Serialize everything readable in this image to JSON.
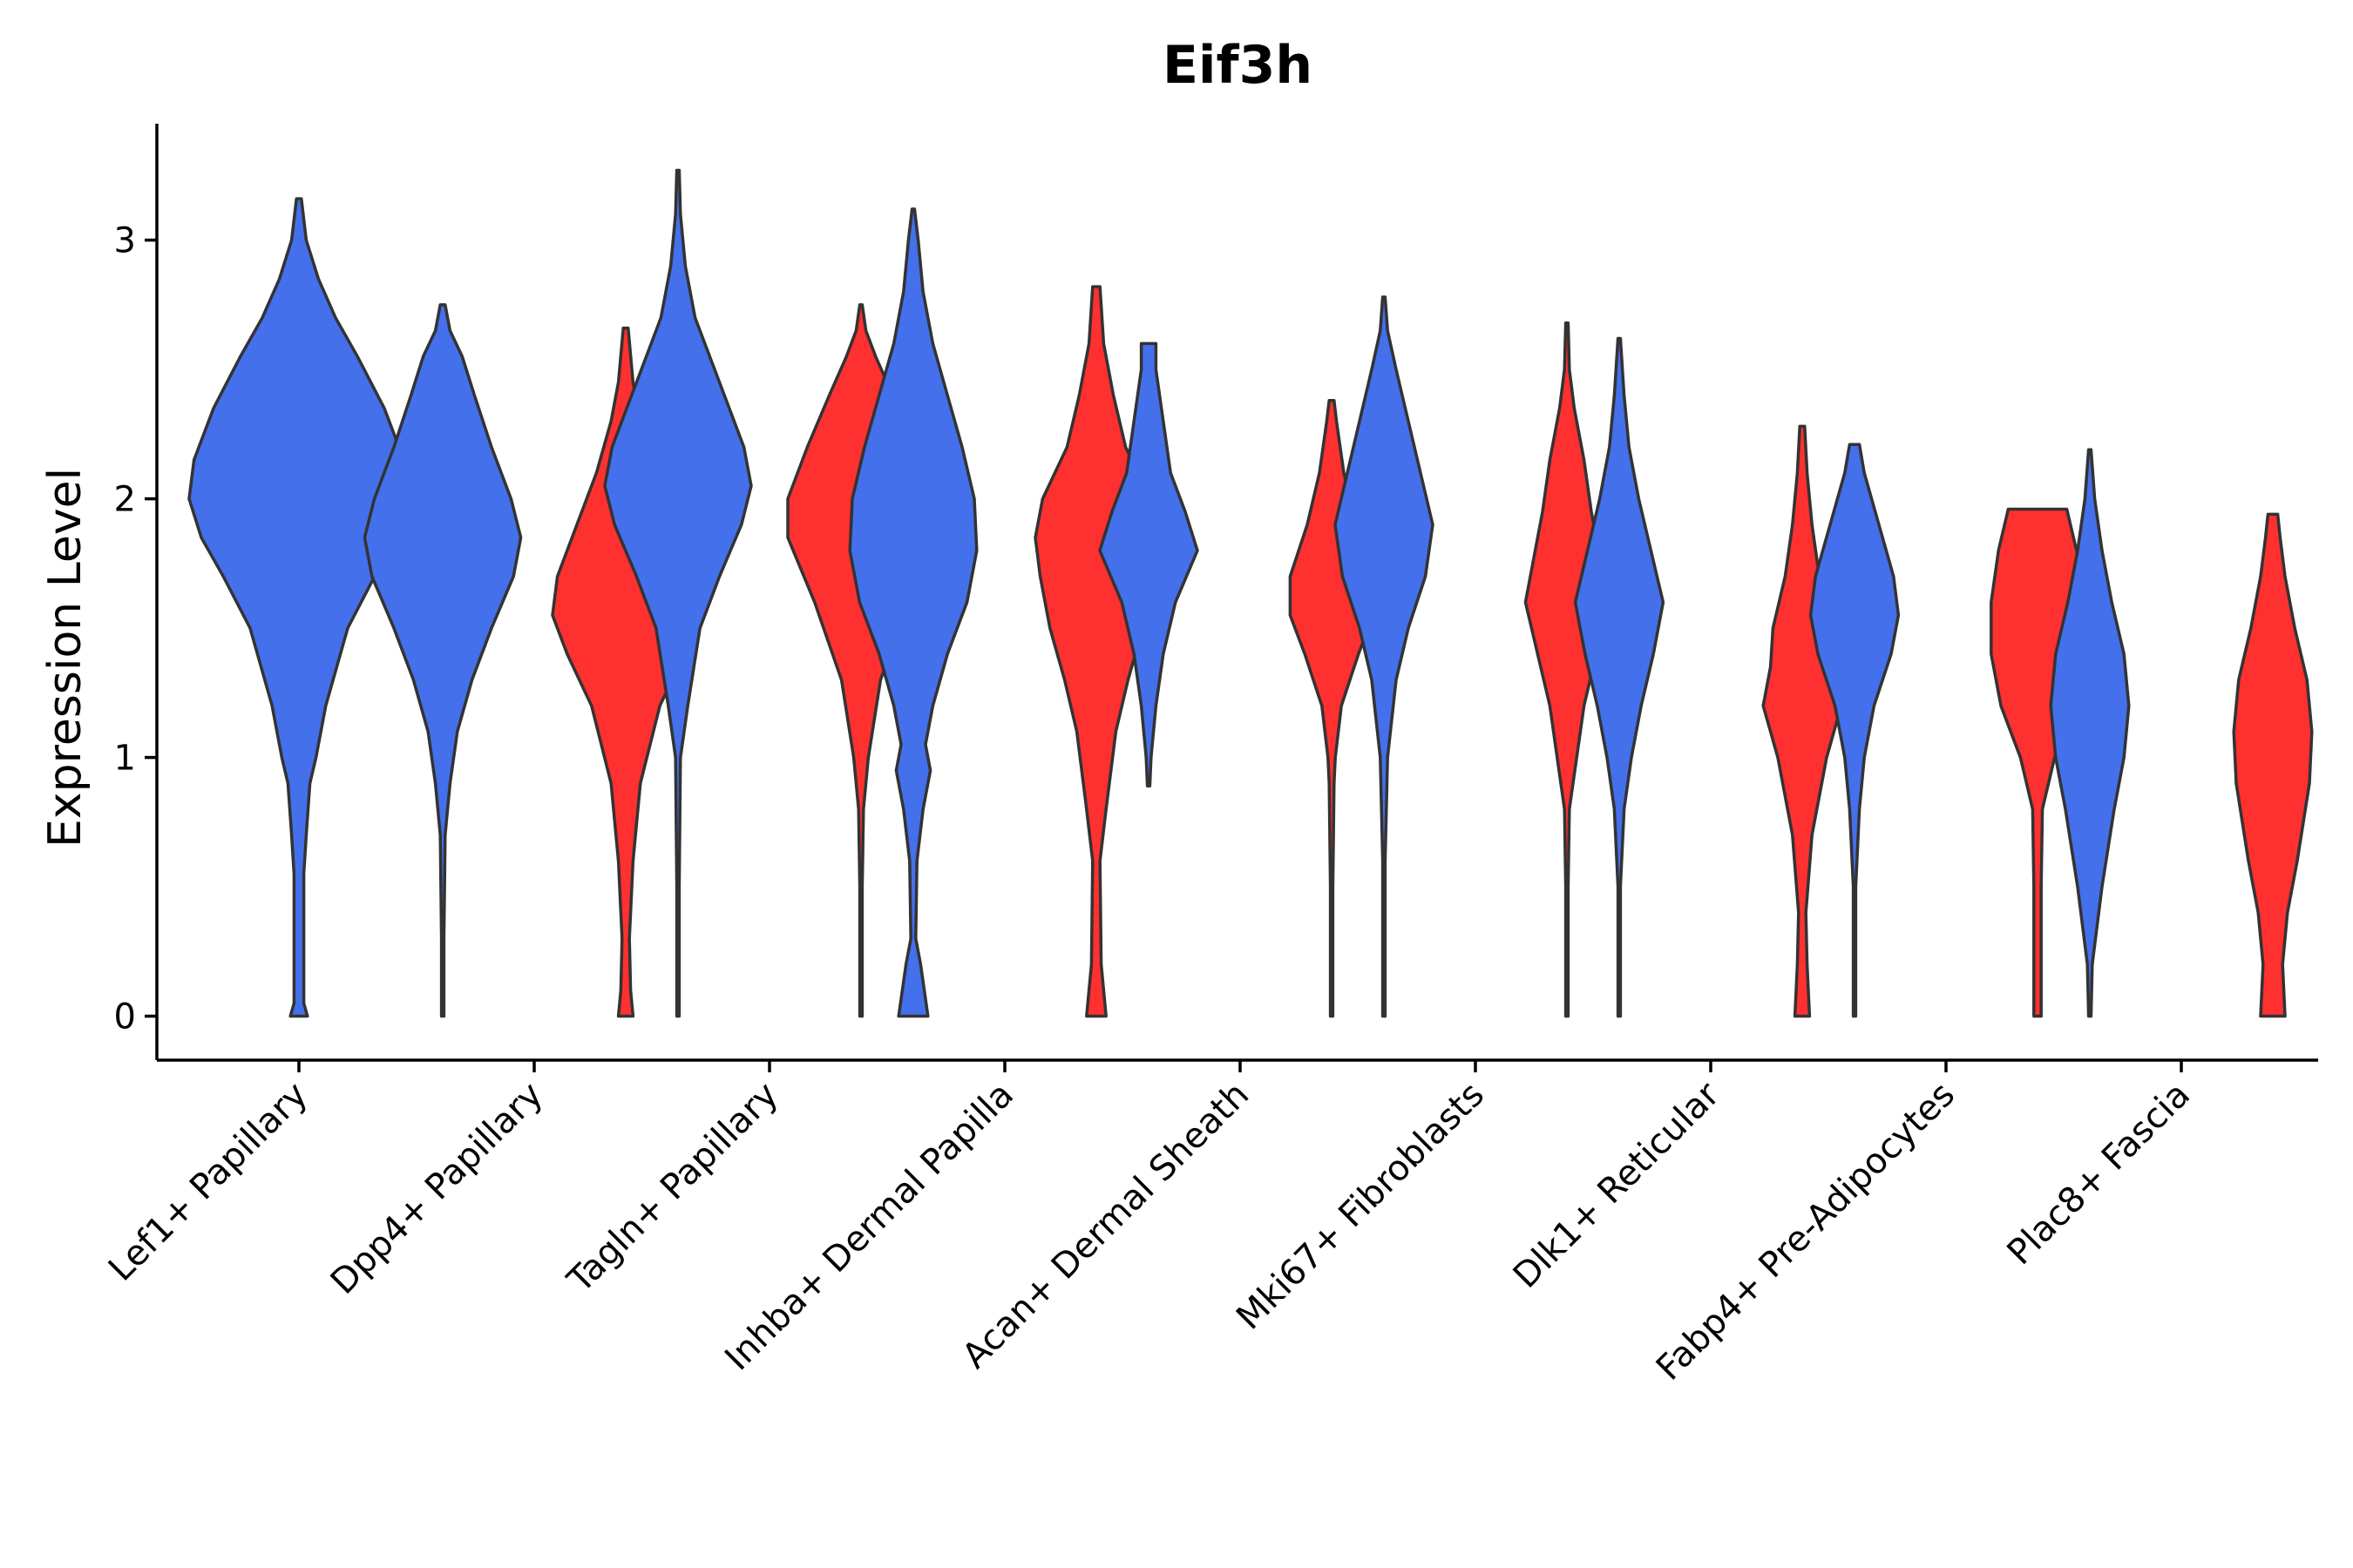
{
  "chart_data": {
    "type": "violin",
    "title": "Eif3h",
    "xlabel": "",
    "ylabel": "Expression Level",
    "ylim": [
      -0.17,
      3.45
    ],
    "yticks": [
      0,
      1,
      2,
      3
    ],
    "categories": [
      "Lef1+ Papillary",
      "Dpp4+ Papillary",
      "Tagln+ Papillary",
      "Inhba+ Dermal Papilla",
      "Acan+ Dermal Sheath",
      "Mki67+ Fibroblasts",
      "Dlk1+ Reticular",
      "Fabp4+ Pre-Adipocytes",
      "Plac8+ Fascia"
    ],
    "colors": {
      "group_a": "#4470EC",
      "group_b": "#FF3030"
    },
    "violins": [
      {
        "category": "Lef1+ Papillary",
        "group": "group_a",
        "min": 0,
        "max": 3.16,
        "profile": [
          [
            0,
            0.035
          ],
          [
            0.05,
            0.02
          ],
          [
            0.3,
            0.02
          ],
          [
            0.55,
            0.02
          ],
          [
            0.7,
            0.03
          ],
          [
            0.9,
            0.045
          ],
          [
            1.0,
            0.07
          ],
          [
            1.2,
            0.11
          ],
          [
            1.5,
            0.2
          ],
          [
            1.7,
            0.31
          ],
          [
            1.85,
            0.4
          ],
          [
            2.0,
            0.45
          ],
          [
            2.15,
            0.43
          ],
          [
            2.35,
            0.35
          ],
          [
            2.55,
            0.24
          ],
          [
            2.7,
            0.15
          ],
          [
            2.85,
            0.08
          ],
          [
            3.0,
            0.03
          ],
          [
            3.16,
            0.01
          ]
        ]
      },
      {
        "category": "Dpp4+ Papillary",
        "group": "group_a",
        "min": 0,
        "max": 2.75,
        "profile": [
          [
            0,
            0.005
          ],
          [
            0.3,
            0.005
          ],
          [
            0.7,
            0.01
          ],
          [
            0.9,
            0.03
          ],
          [
            1.1,
            0.06
          ],
          [
            1.3,
            0.12
          ],
          [
            1.5,
            0.2
          ],
          [
            1.7,
            0.29
          ],
          [
            1.85,
            0.32
          ],
          [
            2.0,
            0.28
          ],
          [
            2.2,
            0.2
          ],
          [
            2.4,
            0.13
          ],
          [
            2.55,
            0.08
          ],
          [
            2.65,
            0.03
          ],
          [
            2.75,
            0.01
          ]
        ]
      },
      {
        "category": "Dpp4+ Papillary",
        "group": "group_b",
        "min": 0,
        "max": 2.66,
        "profile": [
          [
            0,
            0.03
          ],
          [
            0.1,
            0.02
          ],
          [
            0.3,
            0.015
          ],
          [
            0.6,
            0.03
          ],
          [
            0.9,
            0.06
          ],
          [
            1.2,
            0.14
          ],
          [
            1.4,
            0.24
          ],
          [
            1.55,
            0.3
          ],
          [
            1.7,
            0.28
          ],
          [
            1.9,
            0.2
          ],
          [
            2.1,
            0.12
          ],
          [
            2.3,
            0.06
          ],
          [
            2.45,
            0.03
          ],
          [
            2.66,
            0.01
          ]
        ]
      },
      {
        "category": "Tagln+ Papillary",
        "group": "group_a",
        "min": 0,
        "max": 3.27,
        "profile": [
          [
            0,
            0.005
          ],
          [
            0.5,
            0.005
          ],
          [
            1.0,
            0.01
          ],
          [
            1.2,
            0.04
          ],
          [
            1.5,
            0.09
          ],
          [
            1.7,
            0.17
          ],
          [
            1.9,
            0.26
          ],
          [
            2.05,
            0.3
          ],
          [
            2.2,
            0.27
          ],
          [
            2.4,
            0.19
          ],
          [
            2.55,
            0.13
          ],
          [
            2.7,
            0.07
          ],
          [
            2.9,
            0.03
          ],
          [
            3.1,
            0.01
          ],
          [
            3.27,
            0.005
          ]
        ]
      },
      {
        "category": "Tagln+ Papillary",
        "group": "group_b",
        "min": 0,
        "max": 2.75,
        "profile": [
          [
            0,
            0.005
          ],
          [
            0.5,
            0.005
          ],
          [
            0.8,
            0.01
          ],
          [
            1.0,
            0.03
          ],
          [
            1.3,
            0.08
          ],
          [
            1.6,
            0.19
          ],
          [
            1.85,
            0.3
          ],
          [
            2.0,
            0.3
          ],
          [
            2.2,
            0.22
          ],
          [
            2.4,
            0.13
          ],
          [
            2.55,
            0.06
          ],
          [
            2.65,
            0.02
          ],
          [
            2.75,
            0.005
          ]
        ]
      },
      {
        "category": "Inhba+ Dermal Papilla",
        "group": "group_a",
        "min": 0,
        "max": 3.12,
        "profile": [
          [
            0,
            0.06
          ],
          [
            0.2,
            0.03
          ],
          [
            0.3,
            0.01
          ],
          [
            0.6,
            0.015
          ],
          [
            0.8,
            0.04
          ],
          [
            0.95,
            0.07
          ],
          [
            1.05,
            0.05
          ],
          [
            1.2,
            0.08
          ],
          [
            1.4,
            0.14
          ],
          [
            1.6,
            0.22
          ],
          [
            1.8,
            0.26
          ],
          [
            2.0,
            0.25
          ],
          [
            2.2,
            0.2
          ],
          [
            2.4,
            0.14
          ],
          [
            2.6,
            0.08
          ],
          [
            2.8,
            0.04
          ],
          [
            3.0,
            0.02
          ],
          [
            3.12,
            0.005
          ]
        ]
      },
      {
        "category": "Inhba+ Dermal Papilla",
        "group": "group_b",
        "min": 0,
        "max": 2.82,
        "profile": [
          [
            0,
            0.04
          ],
          [
            0.2,
            0.02
          ],
          [
            0.6,
            0.015
          ],
          [
            0.8,
            0.04
          ],
          [
            1.1,
            0.08
          ],
          [
            1.3,
            0.13
          ],
          [
            1.5,
            0.19
          ],
          [
            1.7,
            0.23
          ],
          [
            1.85,
            0.25
          ],
          [
            2.0,
            0.22
          ],
          [
            2.2,
            0.12
          ],
          [
            2.4,
            0.07
          ],
          [
            2.6,
            0.03
          ],
          [
            2.82,
            0.015
          ]
        ]
      },
      {
        "category": "Acan+ Dermal Sheath",
        "group": "group_a",
        "min": 0.89,
        "max": 2.6,
        "profile": [
          [
            0.89,
            0.005
          ],
          [
            1.0,
            0.01
          ],
          [
            1.2,
            0.03
          ],
          [
            1.4,
            0.06
          ],
          [
            1.6,
            0.11
          ],
          [
            1.8,
            0.2
          ],
          [
            1.95,
            0.15
          ],
          [
            2.1,
            0.09
          ],
          [
            2.3,
            0.06
          ],
          [
            2.5,
            0.03
          ],
          [
            2.6,
            0.03
          ]
        ]
      },
      {
        "category": "Acan+ Dermal Sheath",
        "group": "group_b",
        "min": 0,
        "max": 2.38,
        "profile": [
          [
            0,
            0.005
          ],
          [
            0.5,
            0.005
          ],
          [
            0.9,
            0.01
          ],
          [
            1.0,
            0.015
          ],
          [
            1.2,
            0.04
          ],
          [
            1.4,
            0.11
          ],
          [
            1.55,
            0.17
          ],
          [
            1.7,
            0.17
          ],
          [
            1.9,
            0.1
          ],
          [
            2.1,
            0.05
          ],
          [
            2.3,
            0.02
          ],
          [
            2.38,
            0.01
          ]
        ]
      },
      {
        "category": "Mki67+ Fibroblasts",
        "group": "group_a",
        "min": 0,
        "max": 2.78,
        "profile": [
          [
            0,
            0.005
          ],
          [
            0.6,
            0.005
          ],
          [
            1.0,
            0.015
          ],
          [
            1.3,
            0.05
          ],
          [
            1.5,
            0.1
          ],
          [
            1.7,
            0.17
          ],
          [
            1.9,
            0.2
          ],
          [
            2.1,
            0.15
          ],
          [
            2.3,
            0.1
          ],
          [
            2.5,
            0.05
          ],
          [
            2.65,
            0.015
          ],
          [
            2.78,
            0.005
          ]
        ]
      },
      {
        "category": "Mki67+ Fibroblasts",
        "group": "group_b",
        "min": 0,
        "max": 2.68,
        "profile": [
          [
            0,
            0.005
          ],
          [
            0.5,
            0.005
          ],
          [
            0.8,
            0.01
          ],
          [
            1.0,
            0.04
          ],
          [
            1.2,
            0.07
          ],
          [
            1.4,
            0.12
          ],
          [
            1.6,
            0.17
          ],
          [
            1.75,
            0.14
          ],
          [
            1.95,
            0.1
          ],
          [
            2.15,
            0.07
          ],
          [
            2.35,
            0.03
          ],
          [
            2.5,
            0.01
          ],
          [
            2.68,
            0.005
          ]
        ]
      },
      {
        "category": "Dlk1+ Reticular",
        "group": "group_a",
        "min": 0,
        "max": 2.62,
        "profile": [
          [
            0,
            0.005
          ],
          [
            0.5,
            0.005
          ],
          [
            0.8,
            0.02
          ],
          [
            1.0,
            0.05
          ],
          [
            1.2,
            0.09
          ],
          [
            1.4,
            0.14
          ],
          [
            1.6,
            0.18
          ],
          [
            1.8,
            0.13
          ],
          [
            2.0,
            0.08
          ],
          [
            2.2,
            0.04
          ],
          [
            2.4,
            0.02
          ],
          [
            2.62,
            0.005
          ]
        ]
      },
      {
        "category": "Dlk1+ Reticular",
        "group": "group_b",
        "min": 0,
        "max": 2.28,
        "profile": [
          [
            0,
            0.03
          ],
          [
            0.2,
            0.02
          ],
          [
            0.4,
            0.015
          ],
          [
            0.7,
            0.04
          ],
          [
            1.0,
            0.1
          ],
          [
            1.2,
            0.16
          ],
          [
            1.35,
            0.13
          ],
          [
            1.5,
            0.12
          ],
          [
            1.7,
            0.07
          ],
          [
            1.9,
            0.04
          ],
          [
            2.1,
            0.02
          ],
          [
            2.28,
            0.01
          ]
        ]
      },
      {
        "category": "Fabp4+ Pre-Adipocytes",
        "group": "group_a",
        "min": 0,
        "max": 2.21,
        "profile": [
          [
            0,
            0.005
          ],
          [
            0.5,
            0.005
          ],
          [
            0.8,
            0.02
          ],
          [
            1.0,
            0.04
          ],
          [
            1.2,
            0.08
          ],
          [
            1.4,
            0.15
          ],
          [
            1.55,
            0.18
          ],
          [
            1.7,
            0.16
          ],
          [
            1.9,
            0.1
          ],
          [
            2.1,
            0.04
          ],
          [
            2.21,
            0.02
          ]
        ]
      },
      {
        "category": "Fabp4+ Pre-Adipocytes",
        "group": "group_b",
        "min": 0,
        "max": 1.96,
        "profile": [
          [
            0,
            0.015
          ],
          [
            0.5,
            0.015
          ],
          [
            0.8,
            0.02
          ],
          [
            1.0,
            0.07
          ],
          [
            1.2,
            0.15
          ],
          [
            1.4,
            0.19
          ],
          [
            1.6,
            0.19
          ],
          [
            1.8,
            0.16
          ],
          [
            1.96,
            0.12
          ]
        ]
      },
      {
        "category": "Plac8+ Fascia",
        "group": "group_a",
        "min": 0,
        "max": 2.19,
        "profile": [
          [
            0,
            0.005
          ],
          [
            0.2,
            0.01
          ],
          [
            0.5,
            0.05
          ],
          [
            0.8,
            0.1
          ],
          [
            1.0,
            0.14
          ],
          [
            1.2,
            0.16
          ],
          [
            1.4,
            0.14
          ],
          [
            1.6,
            0.09
          ],
          [
            1.8,
            0.05
          ],
          [
            2.0,
            0.02
          ],
          [
            2.19,
            0.005
          ]
        ]
      },
      {
        "category": "Plac8+ Fascia",
        "group": "group_b",
        "min": 0,
        "max": 1.94,
        "profile": [
          [
            0,
            0.05
          ],
          [
            0.2,
            0.04
          ],
          [
            0.4,
            0.06
          ],
          [
            0.6,
            0.1
          ],
          [
            0.9,
            0.15
          ],
          [
            1.1,
            0.16
          ],
          [
            1.3,
            0.14
          ],
          [
            1.5,
            0.09
          ],
          [
            1.7,
            0.05
          ],
          [
            1.85,
            0.03
          ],
          [
            1.94,
            0.02
          ]
        ]
      }
    ]
  }
}
